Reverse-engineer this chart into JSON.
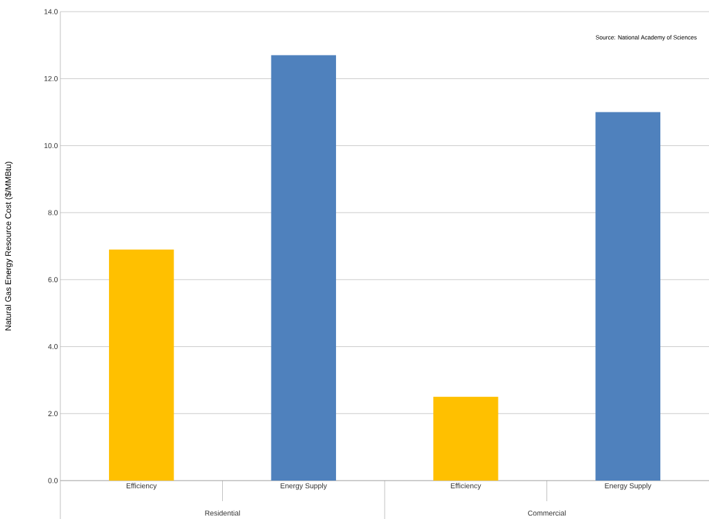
{
  "chart_data": {
    "type": "bar",
    "categories": [
      "Efficiency",
      "Energy Supply",
      "Efficiency",
      "Energy Supply"
    ],
    "values": [
      6.9,
      12.7,
      2.5,
      11.0
    ],
    "colors": [
      "#ffc000",
      "#4f81bd",
      "#ffc000",
      "#4f81bd"
    ],
    "ylabel": "Natural Gas Energy Resource Cost ($/MMBtu)",
    "ylim": [
      0,
      14
    ],
    "yticks": [
      {
        "value": 0,
        "label": "0.0"
      },
      {
        "value": 2,
        "label": "2.0"
      },
      {
        "value": 4,
        "label": "4.0"
      },
      {
        "value": 6,
        "label": "6.0"
      },
      {
        "value": 8,
        "label": "8.0"
      },
      {
        "value": 10,
        "label": "10.0"
      },
      {
        "value": 12,
        "label": "12.0"
      },
      {
        "value": 14,
        "label": "14.0"
      }
    ],
    "grid": "y",
    "annotations": [
      "Source: National Academy of Sciences",
      "Residential",
      "Commercial"
    ]
  }
}
